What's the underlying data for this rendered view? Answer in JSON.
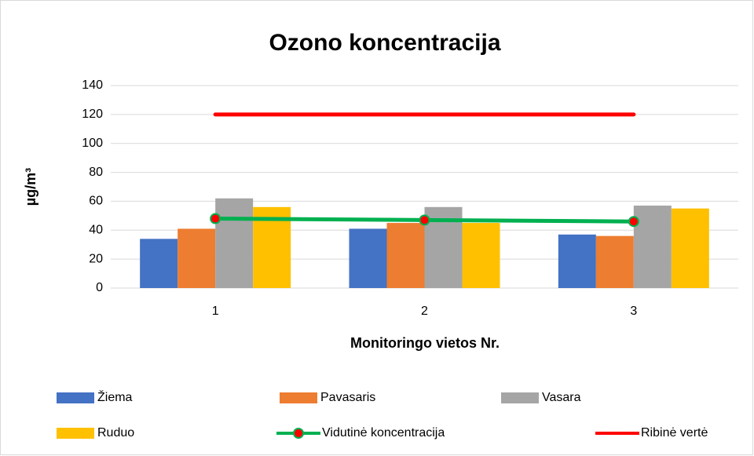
{
  "chart_data": {
    "type": "bar",
    "title": "Ozono koncentracija",
    "x_label": "Monitoringo vietos Nr.",
    "y_label": "µg/m³",
    "categories": [
      "1",
      "2",
      "3"
    ],
    "series": [
      {
        "name": "Žiema",
        "color": "#4472c4",
        "values": [
          34,
          41,
          37
        ]
      },
      {
        "name": "Pavasaris",
        "color": "#ed7d31",
        "values": [
          41,
          45,
          36
        ]
      },
      {
        "name": "Vasara",
        "color": "#a5a5a5",
        "values": [
          62,
          56,
          57
        ]
      },
      {
        "name": "Ruduo",
        "color": "#ffc000",
        "values": [
          56,
          45,
          55
        ]
      },
      {
        "name": "Vidutinė koncentracija",
        "type": "line",
        "color": "#00b050",
        "marker_color": "#ff0000",
        "values": [
          48,
          47,
          46
        ]
      },
      {
        "name": "Ribinė vertė",
        "type": "line",
        "color": "#ff0000",
        "values": [
          120,
          120,
          120
        ]
      }
    ],
    "ylim": [
      0,
      140
    ],
    "yticks": [
      0,
      20,
      40,
      60,
      80,
      100,
      120,
      140
    ],
    "grid": true,
    "legend": "bottom"
  }
}
